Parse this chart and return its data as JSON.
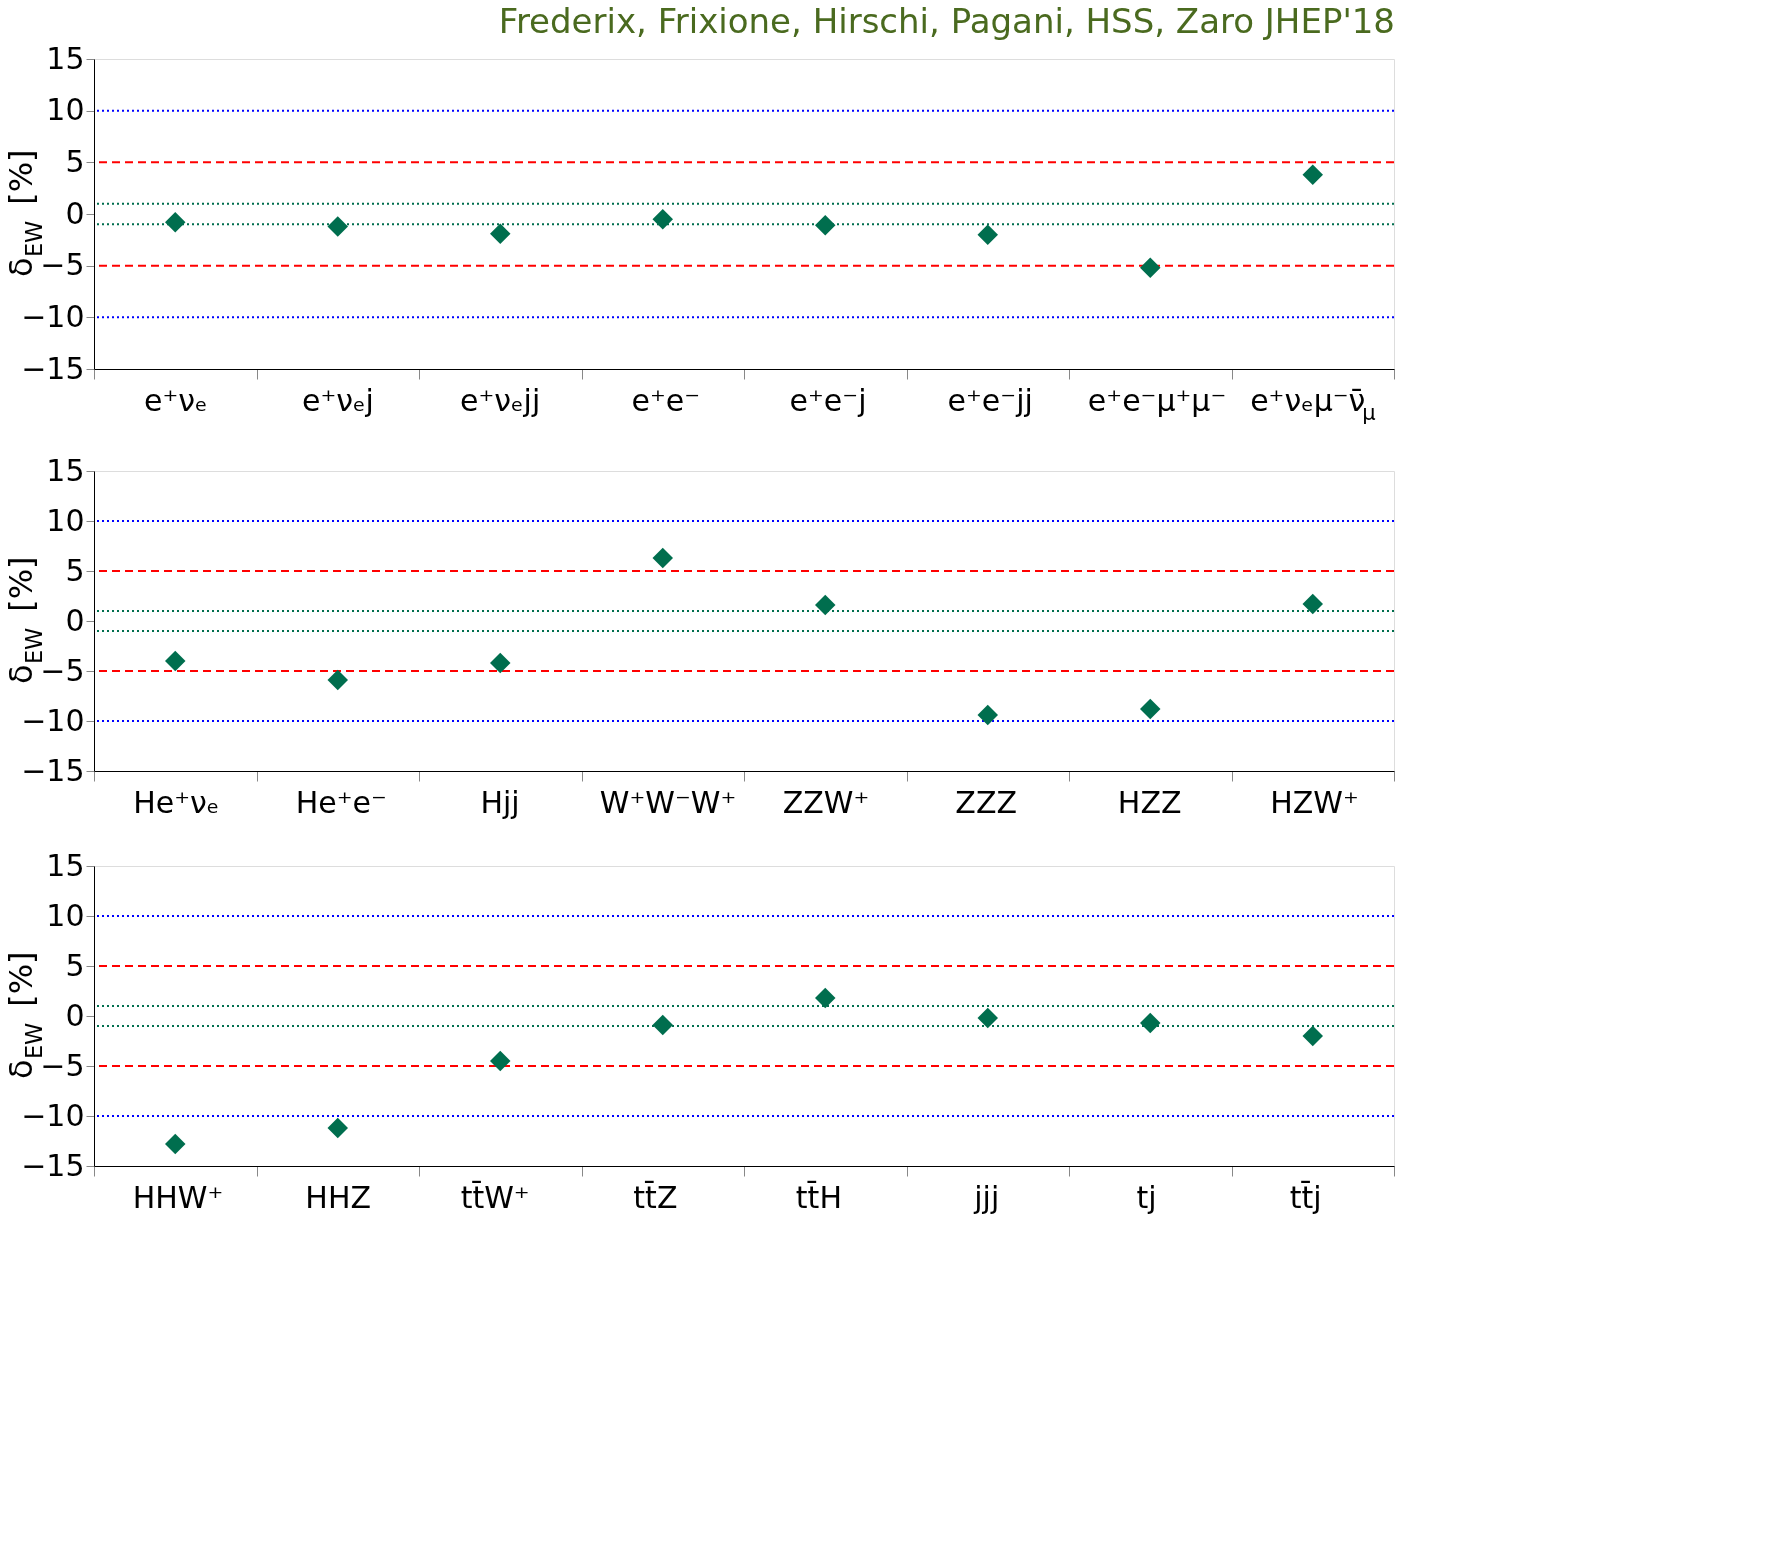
{
  "chart_data": [
    {
      "type": "scatter",
      "title": "Frederix, Frixione, Hirschi, Pagani, HSS, Zaro JHEP'18",
      "ylabel": "δ$_{EW}$ [%]",
      "categories": [
        "e⁺νₑ",
        "e⁺νₑj",
        "e⁺νₑjj",
        "e⁺e⁻",
        "e⁺e⁻j",
        "e⁺e⁻jj",
        "e⁺e⁻μ⁺μ⁻",
        "e⁺νₑμ⁻ν̄$_{μ}$"
      ],
      "series": [
        {
          "color": "#006e4e",
          "values": [
            -0.8,
            -1.2,
            -1.9,
            -0.5,
            -1.1,
            -2.0,
            -5.2,
            3.8
          ]
        }
      ],
      "ylim": [
        -15,
        15
      ],
      "yticks": [
        -15,
        -10,
        -5,
        0,
        5,
        10,
        15
      ],
      "grid": false,
      "marker": "diamond",
      "ref_lines": [
        {
          "axis": "y",
          "value": 10,
          "color": "#0000ff",
          "line_style": "dotted"
        },
        {
          "axis": "y",
          "value": -10,
          "color": "#0000ff",
          "line_style": "dotted"
        },
        {
          "axis": "y",
          "value": 5,
          "color": "#ff0000",
          "line_style": "dashed"
        },
        {
          "axis": "y",
          "value": -5,
          "color": "#ff0000",
          "line_style": "dashed"
        },
        {
          "axis": "y",
          "value": 1,
          "color": "#006e4e",
          "line_style": "dotted"
        },
        {
          "axis": "y",
          "value": -1,
          "color": "#006e4e",
          "line_style": "dotted"
        }
      ]
    },
    {
      "type": "scatter",
      "ylabel": "δ$_{EW}$ [%]",
      "categories": [
        "He⁺νₑ",
        "He⁺e⁻",
        "Hjj",
        "W⁺W⁻W⁺",
        "ZZW⁺",
        "ZZZ",
        "HZZ",
        "HZW⁺"
      ],
      "series": [
        {
          "color": "#006e4e",
          "values": [
            -4.0,
            -5.9,
            -4.2,
            6.3,
            1.6,
            -9.4,
            -8.8,
            1.7
          ]
        }
      ],
      "ylim": [
        -15,
        15
      ],
      "yticks": [
        -15,
        -10,
        -5,
        0,
        5,
        10,
        15
      ],
      "grid": false,
      "marker": "diamond",
      "ref_lines": [
        {
          "axis": "y",
          "value": 10,
          "color": "#0000ff",
          "line_style": "dotted"
        },
        {
          "axis": "y",
          "value": -10,
          "color": "#0000ff",
          "line_style": "dotted"
        },
        {
          "axis": "y",
          "value": 5,
          "color": "#ff0000",
          "line_style": "dashed"
        },
        {
          "axis": "y",
          "value": -5,
          "color": "#ff0000",
          "line_style": "dashed"
        },
        {
          "axis": "y",
          "value": 1,
          "color": "#006e4e",
          "line_style": "dotted"
        },
        {
          "axis": "y",
          "value": -1,
          "color": "#006e4e",
          "line_style": "dotted"
        }
      ]
    },
    {
      "type": "scatter",
      "ylabel": "δ$_{EW}$ [%]",
      "categories": [
        "HHW⁺",
        "HHZ",
        "tt̄W⁺",
        "tt̄Z",
        "tt̄H",
        "jjj",
        "tj",
        "tt̄j"
      ],
      "series": [
        {
          "color": "#006e4e",
          "values": [
            -12.8,
            -11.2,
            -4.5,
            -0.9,
            1.8,
            -0.2,
            -0.7,
            -2.0
          ]
        }
      ],
      "ylim": [
        -15,
        15
      ],
      "yticks": [
        -15,
        -10,
        -5,
        0,
        5,
        10,
        15
      ],
      "grid": false,
      "marker": "diamond",
      "ref_lines": [
        {
          "axis": "y",
          "value": 10,
          "color": "#0000ff",
          "line_style": "dotted"
        },
        {
          "axis": "y",
          "value": -10,
          "color": "#0000ff",
          "line_style": "dotted"
        },
        {
          "axis": "y",
          "value": 5,
          "color": "#ff0000",
          "line_style": "dashed"
        },
        {
          "axis": "y",
          "value": -5,
          "color": "#ff0000",
          "line_style": "dashed"
        },
        {
          "axis": "y",
          "value": 1,
          "color": "#006e4e",
          "line_style": "dotted"
        },
        {
          "axis": "y",
          "value": -1,
          "color": "#006e4e",
          "line_style": "dotted"
        }
      ]
    }
  ]
}
